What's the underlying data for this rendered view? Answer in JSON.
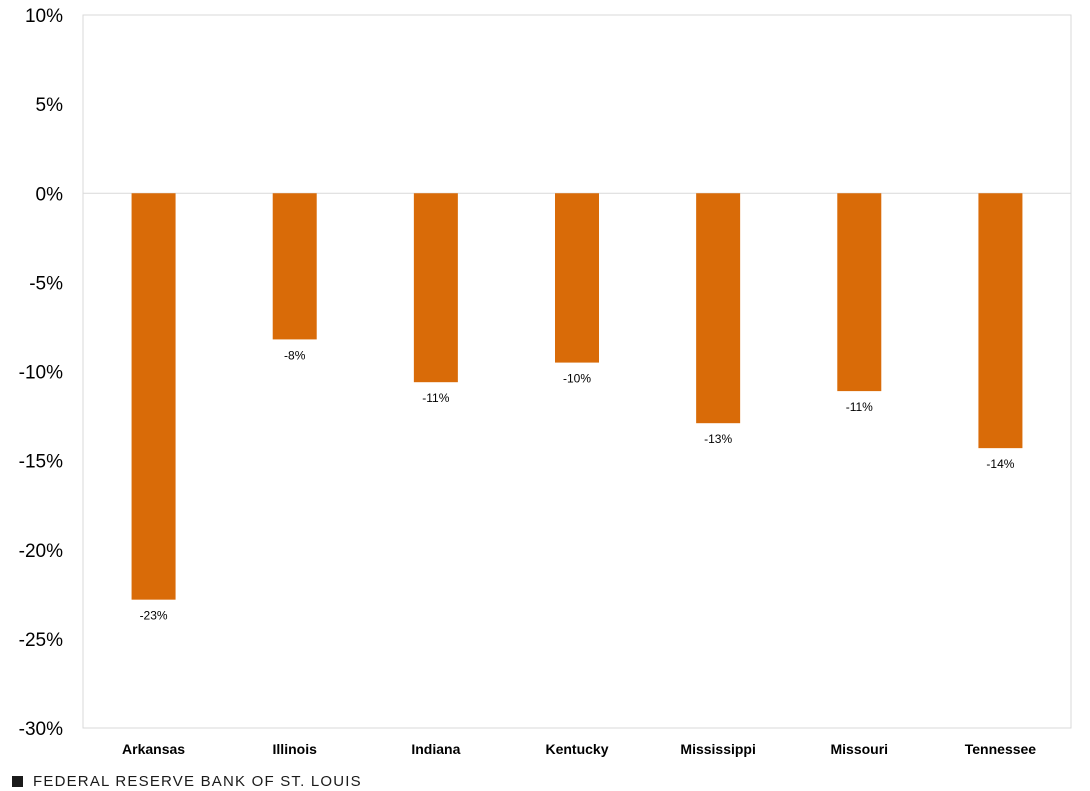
{
  "chart_data": {
    "type": "bar",
    "title": "",
    "xlabel": "",
    "ylabel": "",
    "categories": [
      "Arkansas",
      "Illinois",
      "Indiana",
      "Kentucky",
      "Mississippi",
      "Missouri",
      "Tennessee"
    ],
    "values": [
      -22.8,
      -8.2,
      -10.6,
      -9.5,
      -12.9,
      -11.1,
      -14.3
    ],
    "data_labels": [
      "-23%",
      "-8%",
      "-11%",
      "-10%",
      "-13%",
      "-11%",
      "-14%"
    ],
    "ylim": [
      -30,
      10
    ],
    "yticks": [
      10,
      5,
      0,
      -5,
      -10,
      -15,
      -20,
      -25,
      -30
    ],
    "ytick_labels": [
      "10%",
      "5%",
      "0%",
      "-5%",
      "-10%",
      "-15%",
      "-20%",
      "-25%",
      "-30%"
    ],
    "bar_color": "#d96b08",
    "grid": false,
    "legend": "none"
  },
  "footer": {
    "source": "FEDERAL RESERVE BANK OF ST. LOUIS",
    "icon": "square-icon"
  }
}
